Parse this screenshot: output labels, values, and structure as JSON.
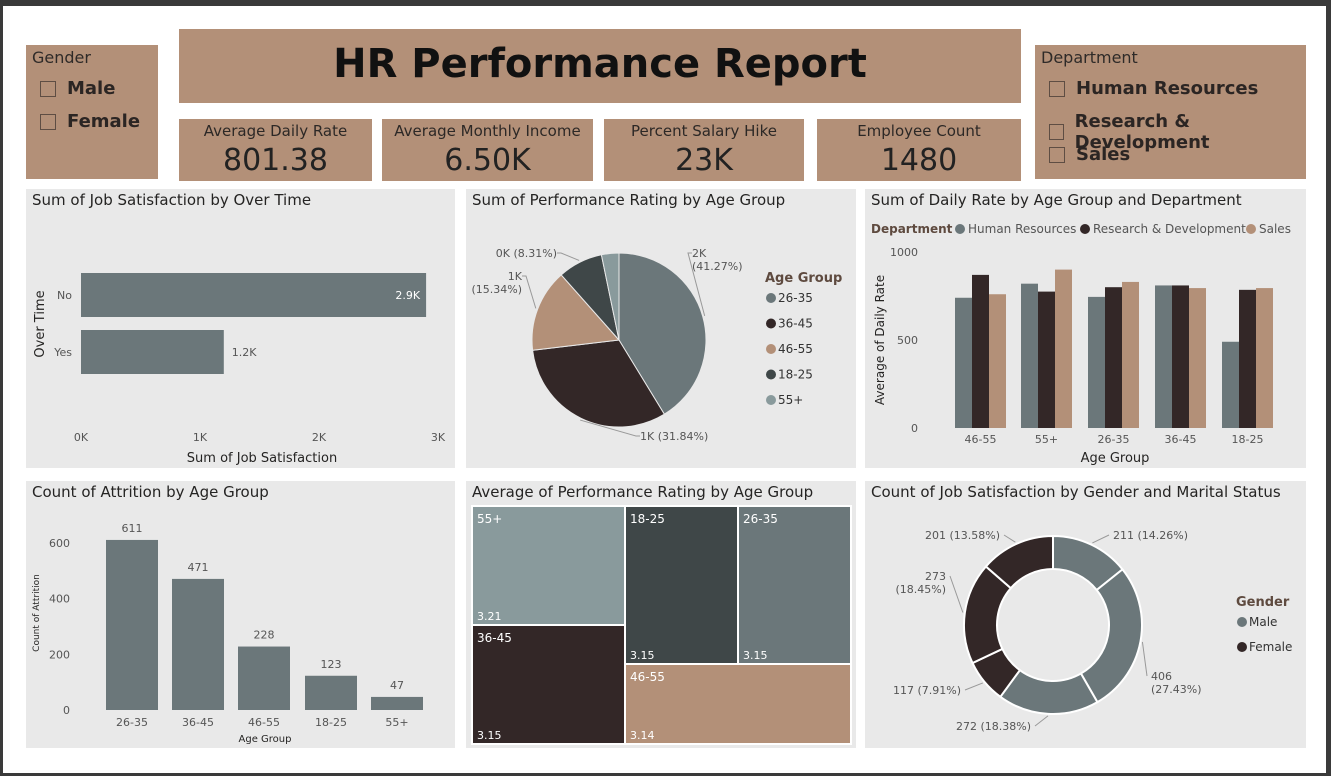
{
  "title": "HR Performance Report",
  "gender_slicer": {
    "title": "Gender",
    "items": [
      "Male",
      "Female"
    ]
  },
  "department_slicer": {
    "title": "Department",
    "items": [
      "Human Resources",
      "Research & Development",
      "Sales"
    ]
  },
  "cards": [
    {
      "label": "Average Daily Rate",
      "value": "801.38"
    },
    {
      "label": "Average Monthly Income",
      "value": "6.50K"
    },
    {
      "label": "Percent Salary Hike",
      "value": "23K"
    },
    {
      "label": "Employee Count",
      "value": "1480"
    }
  ],
  "colors": {
    "tan": "#b39078",
    "panel": "#e9e9e9",
    "slate": "#6b777a",
    "dark": "#332727",
    "charcoal": "#3f4748",
    "light_slate": "#899a9c"
  },
  "chart_data": [
    {
      "id": "job_satisfaction_over_time",
      "type": "bar",
      "orientation": "horizontal",
      "title": "Sum of Job Satisfaction by Over Time",
      "xlabel": "Sum of Job Satisfaction",
      "ylabel": "Over Time",
      "categories": [
        "No",
        "Yes"
      ],
      "values": [
        2900,
        1200
      ],
      "data_labels": [
        "2.9K",
        "1.2K"
      ],
      "xlim": [
        0,
        3000
      ],
      "xticks": [
        "0K",
        "1K",
        "2K",
        "3K"
      ]
    },
    {
      "id": "performance_rating_age_pie",
      "type": "pie",
      "title": "Sum of Performance Rating by Age Group",
      "legend_title": "Age Group",
      "legend_position": "right",
      "categories": [
        "26-35",
        "36-45",
        "46-55",
        "18-25",
        "55+"
      ],
      "values": [
        41.27,
        31.84,
        15.34,
        8.31,
        3.24
      ],
      "colors": [
        "#6b777a",
        "#332727",
        "#b39078",
        "#3f4748",
        "#899a9c"
      ],
      "labels": [
        "2K\n(41.27%)",
        "1K (31.84%)",
        "1K\n(15.34%)",
        "0K (8.31%)",
        ""
      ]
    },
    {
      "id": "daily_rate_age_dept",
      "type": "bar",
      "title": "Sum of Daily Rate by Age Group and Department",
      "legend_title": "Department",
      "legend_position": "top",
      "xlabel": "Age Group",
      "ylabel": "Average of Daily Rate",
      "categories": [
        "46-55",
        "55+",
        "26-35",
        "36-45",
        "18-25"
      ],
      "series": [
        {
          "name": "Human Resources",
          "color": "#6b777a",
          "values": [
            740,
            820,
            745,
            810,
            490
          ]
        },
        {
          "name": "Research & Development",
          "color": "#332727",
          "values": [
            870,
            775,
            800,
            810,
            785
          ]
        },
        {
          "name": "Sales",
          "color": "#b39078",
          "values": [
            760,
            900,
            830,
            795,
            795
          ]
        }
      ],
      "ylim": [
        0,
        1000
      ],
      "yticks": [
        "0",
        "500",
        "1000"
      ]
    },
    {
      "id": "attrition_age",
      "type": "bar",
      "title": "Count of Attrition by Age Group",
      "xlabel": "Age Group",
      "ylabel": "Count of Attrition",
      "categories": [
        "26-35",
        "36-45",
        "46-55",
        "18-25",
        "55+"
      ],
      "values": [
        611,
        471,
        228,
        123,
        47
      ],
      "ylim": [
        0,
        700
      ],
      "yticks": [
        "0",
        "200",
        "400",
        "600"
      ]
    },
    {
      "id": "avg_perf_treemap",
      "type": "treemap",
      "title": "Average of Performance Rating by Age Group",
      "items": [
        {
          "name": "55+",
          "value": "3.21"
        },
        {
          "name": "18-25",
          "value": "3.15"
        },
        {
          "name": "26-35",
          "value": "3.15"
        },
        {
          "name": "36-45",
          "value": "3.15"
        },
        {
          "name": "46-55",
          "value": "3.14"
        }
      ]
    },
    {
      "id": "job_sat_gender_marital",
      "type": "pie",
      "variant": "donut",
      "title": "Count of Job Satisfaction by Gender and Marital Status",
      "legend_title": "Gender",
      "legend_position": "right",
      "legend_items": [
        "Male",
        "Female"
      ],
      "legend_colors": [
        "#6b777a",
        "#332727"
      ],
      "values": [
        211,
        406,
        272,
        117,
        273,
        201
      ],
      "colors": [
        "#6b777a",
        "#6b777a",
        "#6b777a",
        "#332727",
        "#332727",
        "#332727"
      ],
      "labels": [
        "211 (14.26%)",
        "406\n(27.43%)",
        "272 (18.38%)",
        "117 (7.91%)",
        "273\n(18.45%)",
        "201 (13.58%)"
      ]
    }
  ]
}
